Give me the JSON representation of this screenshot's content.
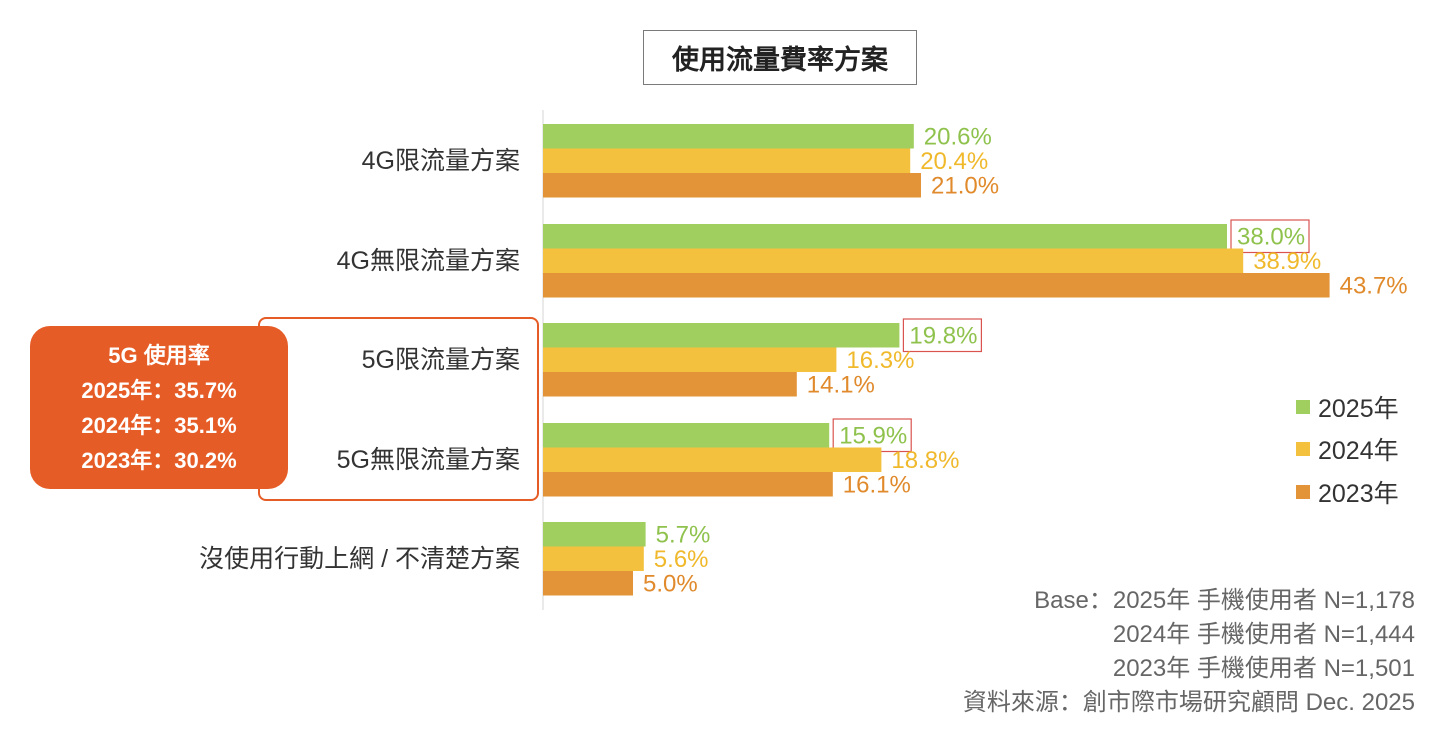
{
  "title": "使用流量費率方案",
  "callout": {
    "heading": "5G 使用率",
    "lines": [
      "2025年：35.7%",
      "2024年：35.1%",
      "2023年：30.2%"
    ]
  },
  "base_note": {
    "lines": [
      "Base：2025年 手機使用者 N=1,178",
      "2024年 手機使用者 N=1,444",
      "2023年 手機使用者 N=1,501",
      "資料來源：創市際市場研究顧問 Dec. 2025"
    ]
  },
  "colors": {
    "2025年": "#a0cf5f",
    "2024年": "#f3c13e",
    "2023年": "#e39438",
    "highlight": "#e65c26",
    "box": "#d9534f"
  },
  "chart_data": {
    "type": "bar",
    "orientation": "horizontal",
    "title": "使用流量費率方案",
    "categories": [
      "4G限流量方案",
      "4G無限流量方案",
      "5G限流量方案",
      "5G無限流量方案",
      "沒使用行動上網 / 不清楚方案"
    ],
    "series": [
      {
        "name": "2025年",
        "values": [
          20.6,
          38.0,
          19.8,
          15.9,
          5.7
        ]
      },
      {
        "name": "2024年",
        "values": [
          20.4,
          38.9,
          16.3,
          18.8,
          5.6
        ]
      },
      {
        "name": "2023年",
        "values": [
          21.0,
          43.7,
          14.1,
          16.1,
          5.0
        ]
      }
    ],
    "value_format": "%",
    "boxed_labels": [
      {
        "series": "2025年",
        "category": "4G無限流量方案"
      },
      {
        "series": "2025年",
        "category": "5G限流量方案"
      },
      {
        "series": "2025年",
        "category": "5G無限流量方案"
      }
    ],
    "legend": [
      "2025年",
      "2024年",
      "2023年"
    ],
    "legend_position": "right",
    "grid": false
  }
}
